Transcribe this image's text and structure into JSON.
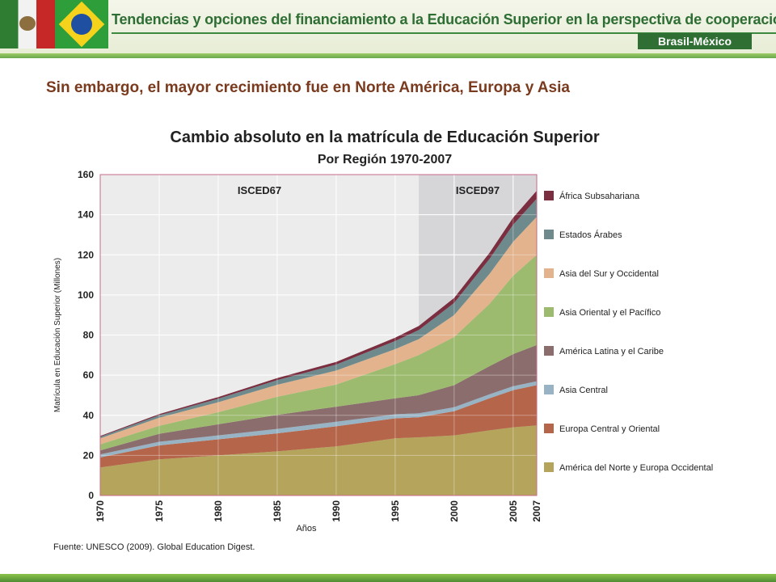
{
  "header": {
    "title": "Tendencias y opciones del financiamiento a la Educación Superior en la perspectiva de cooperación",
    "badge": "Brasil-México",
    "flag_left": "mexico-flag",
    "flag_right": "brazil-flag"
  },
  "slide": {
    "subtitle": "Sin embargo, el  mayor crecimiento fue en Norte América, Europa y Asia"
  },
  "chart_data": {
    "type": "area",
    "stacked": true,
    "title": "Cambio absoluto en la matrícula de Educación Superior",
    "subtitle": "Por Región 1970-2007",
    "xlabel": "Años",
    "ylabel": "Matrícula en Educación Superior (Millones)",
    "ylim": [
      0,
      160
    ],
    "yticks": [
      0,
      20,
      40,
      60,
      80,
      100,
      120,
      140,
      160
    ],
    "xlim": [
      1970,
      2007
    ],
    "xticks": [
      1970,
      1975,
      1980,
      1985,
      1990,
      1995,
      2000,
      2005,
      2007
    ],
    "grid": true,
    "legend_position": "right",
    "annotations": [
      {
        "label": "ISCED67",
        "from": 1970,
        "to": 1997
      },
      {
        "label": "ISCED97",
        "from": 1997,
        "to": 2007
      }
    ],
    "source": "Fuente: UNESCO (2009). Global Education Digest.",
    "x": [
      1970,
      1975,
      1980,
      1985,
      1990,
      1995,
      1997,
      2000,
      2003,
      2005,
      2007
    ],
    "series": [
      {
        "name": "América del Norte y Europa Occidental",
        "color": "#b5a55c",
        "values": [
          14,
          18,
          20,
          22,
          24.5,
          28.5,
          29,
          30,
          32.5,
          34,
          35
        ]
      },
      {
        "name": "Europa Central y Oriental",
        "color": "#b5654a",
        "values": [
          5,
          7,
          8,
          9,
          10,
          10,
          10,
          12,
          16,
          18.5,
          20
        ]
      },
      {
        "name": "Asia Central",
        "color": "#97b3c4",
        "values": [
          1.5,
          1.8,
          2,
          2.2,
          2.3,
          2,
          2,
          2,
          2,
          2,
          2
        ]
      },
      {
        "name": "América Latina y el Caribe",
        "color": "#8b6d6d",
        "values": [
          2,
          4,
          5.5,
          7,
          7.5,
          8,
          9,
          11,
          14,
          16,
          18
        ]
      },
      {
        "name": "Asia Oriental y el Pacífico",
        "color": "#9cbb6e",
        "values": [
          3,
          4,
          6,
          9,
          11,
          17,
          20,
          24,
          31,
          39,
          45
        ]
      },
      {
        "name": "Asia del Sur y Occidental",
        "color": "#e2b38d",
        "values": [
          3,
          4,
          5,
          6,
          7,
          7.5,
          8,
          11,
          15,
          17,
          19
        ]
      },
      {
        "name": "Estados Árabes",
        "color": "#6e8a8c",
        "values": [
          0.8,
          1.2,
          1.8,
          2.3,
          3,
          4,
          4.5,
          6,
          7.5,
          8.5,
          9
        ]
      },
      {
        "name": "África Subsahariana",
        "color": "#7a2e40",
        "values": [
          0.4,
          0.6,
          0.8,
          1,
          1.3,
          1.7,
          2,
          2.5,
          3,
          3.5,
          4
        ]
      }
    ]
  }
}
